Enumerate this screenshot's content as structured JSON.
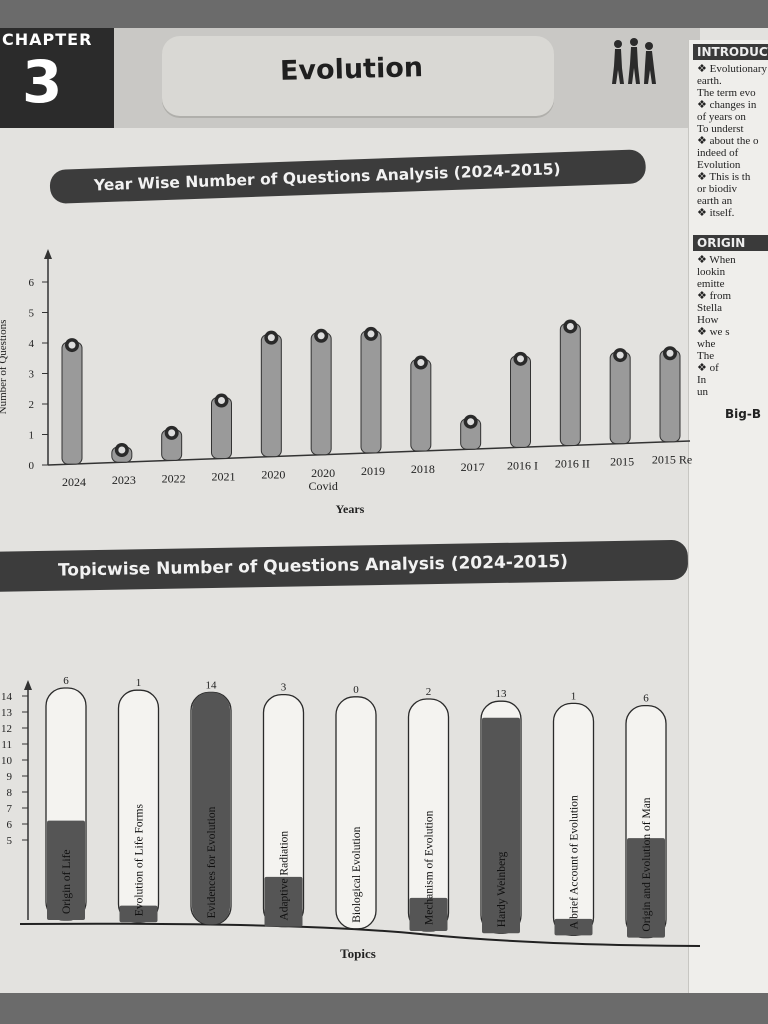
{
  "header": {
    "chapter_label": "CHAPTER",
    "chapter_number": "3",
    "title": "Evolution"
  },
  "side_panel": {
    "heading_intro": "INTRODUCT",
    "intro_lines": [
      "Evolutionary",
      "earth.",
      "The term evo",
      "changes in",
      "of years on",
      "To underst",
      "about the o",
      "indeed of",
      "Evolution",
      "This is th",
      "or biodiv",
      "earth an",
      "itself."
    ],
    "heading_origin": "ORIGIN",
    "origin_lines": [
      "When",
      "lookin",
      "emitte",
      "from",
      "Stella",
      "How",
      "we s",
      "whe",
      "The",
      "of",
      "In",
      "un"
    ],
    "big_heading": "Big-B"
  },
  "year_chart": {
    "banner": "Year Wise Number of Questions Analysis (2024-2015)",
    "y_axis_label": "Number of Questions",
    "x_axis_label": "Years"
  },
  "topic_chart": {
    "banner": "Topicwise Number of Questions Analysis (2024-2015)",
    "x_axis_label": "Topics"
  },
  "chart_data": [
    {
      "type": "bar",
      "title": "Year Wise Number of Questions Analysis (2024-2015)",
      "xlabel": "Years",
      "ylabel": "Number of Questions",
      "ylim": [
        0,
        6
      ],
      "yticks": [
        "0",
        "1",
        "2",
        "3",
        "4",
        "5",
        "6"
      ],
      "categories": [
        "2024",
        "2023",
        "2022",
        "2021",
        "2020",
        "2020 Covid",
        "2019",
        "2018",
        "2017",
        "2016 I",
        "2016 II",
        "2015",
        "2015 Re"
      ],
      "values": [
        4,
        0.5,
        1,
        2,
        4,
        4,
        4,
        3,
        1,
        3,
        4,
        3,
        3
      ],
      "colors": {
        "bar": "#9a9a9a",
        "marker": "#2a2a2a"
      }
    },
    {
      "type": "bar",
      "title": "Topicwise Number of Questions Analysis (2024-2015)",
      "xlabel": "Topics",
      "ylim": [
        0,
        14
      ],
      "yticks": [
        "14",
        "13",
        "12",
        "11",
        "10",
        "9",
        "8",
        "7",
        "6",
        "5"
      ],
      "categories": [
        "Origin of Life",
        "Evolution of Life Forms",
        "Evidences for Evolution",
        "Adaptive Radiation",
        "Biological Evolution",
        "Mechanism of Evolution",
        "Hardy Weinberg",
        "A brief Account of Evolution",
        "Origin and Evolution of Man"
      ],
      "values": [
        6,
        1,
        14,
        3,
        0,
        2,
        13,
        1,
        6
      ],
      "value_labels": [
        "6",
        "1",
        "14",
        "3",
        "0",
        "2",
        "13",
        "1",
        "6"
      ],
      "colors": {
        "fill": "#555555",
        "outline": "#2a2a2a",
        "empty": "#f4f3f0"
      }
    }
  ]
}
